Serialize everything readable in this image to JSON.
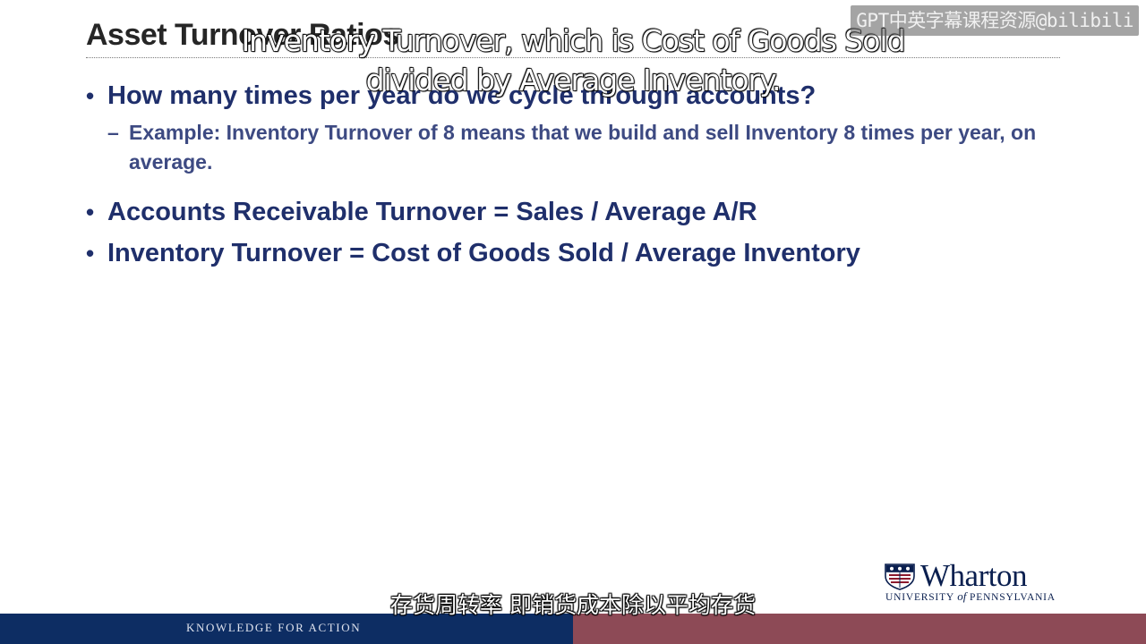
{
  "slide": {
    "title": "Asset Turnover Ratios",
    "bullets": [
      {
        "text": "How many times per year do we cycle through accounts?",
        "sub": "Example: Inventory Turnover of 8 means that we build and sell Inventory 8 times per year, on average."
      },
      {
        "text": "Accounts Receivable Turnover = Sales / Average A/R"
      },
      {
        "text": "Inventory Turnover = Cost of Goods Sold / Average Inventory"
      }
    ],
    "bullet_symbol": "•",
    "sub_symbol": "–"
  },
  "subtitles": {
    "english": "Inventory Turnover, which is Cost of Goods Sold divided by Average Inventory.",
    "chinese": "存货周转率 即销货成本除以平均存货"
  },
  "watermark": "GPT中英字幕课程资源@bilibili",
  "logo": {
    "wordmark": "Wharton",
    "university_prefix": "UNIVERSITY ",
    "university_of": "of",
    "university_suffix": " PENNSYLVANIA",
    "icon": "penn-shield-icon"
  },
  "footer": {
    "tagline": "KNOWLEDGE FOR ACTION",
    "colors": {
      "left": "#0d2d63",
      "right": "#8d4a56"
    }
  },
  "colors": {
    "title": "#262626",
    "bullet_text": "#1f2f6b",
    "sub_bullet_text": "#3d4a82"
  }
}
